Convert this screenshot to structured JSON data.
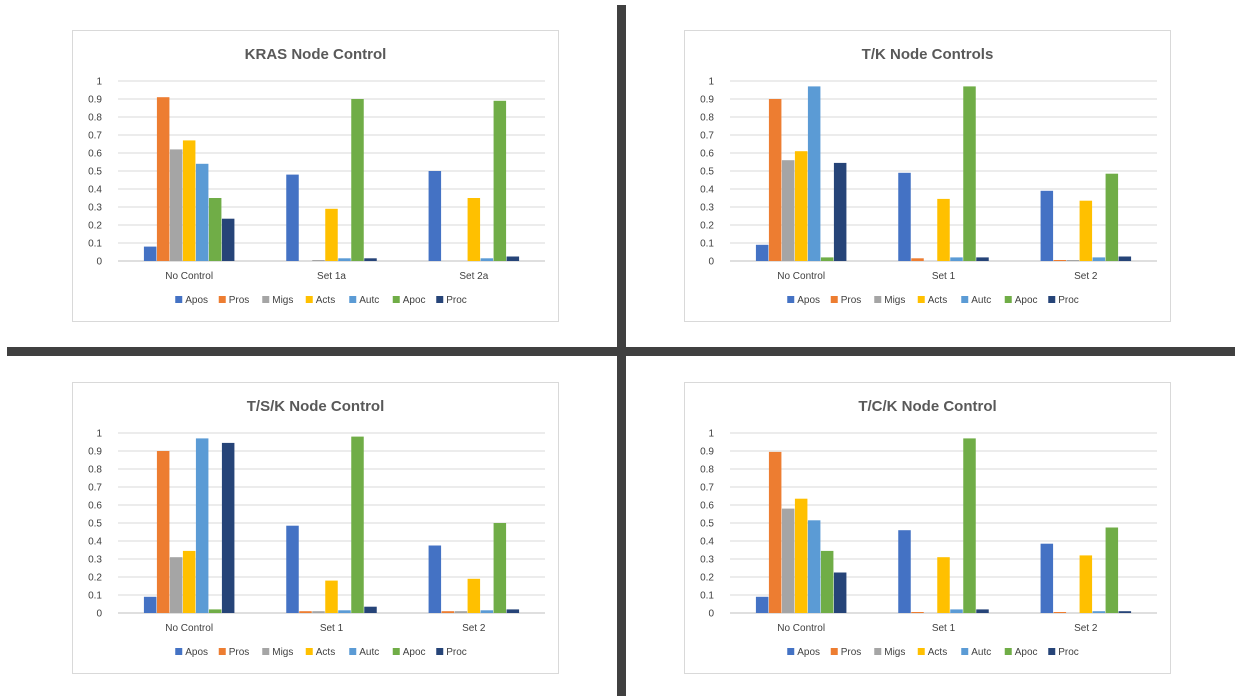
{
  "colors": {
    "Apos": "#4472c4",
    "Pros": "#ed7d31",
    "Migs": "#a5a5a5",
    "Acts": "#ffc000",
    "Autc": "#5b9bd5",
    "Apoc": "#70ad47",
    "Proc": "#264478"
  },
  "chart_data": [
    {
      "type": "bar",
      "title": "KRAS Node Control",
      "categories": [
        "No Control",
        "Set 1a",
        "Set 2a"
      ],
      "ylim": [
        0,
        1
      ],
      "yticks": [
        "0",
        "0.1",
        "0.2",
        "0.3",
        "0.4",
        "0.5",
        "0.6",
        "0.7",
        "0.8",
        "0.9",
        "1"
      ],
      "grid": true,
      "legend": "bottom",
      "series": [
        {
          "name": "Apos",
          "values": [
            0.08,
            0.48,
            0.5
          ]
        },
        {
          "name": "Pros",
          "values": [
            0.91,
            0.0,
            0.0
          ]
        },
        {
          "name": "Migs",
          "values": [
            0.62,
            0.005,
            0.0
          ]
        },
        {
          "name": "Acts",
          "values": [
            0.67,
            0.29,
            0.35
          ]
        },
        {
          "name": "Autc",
          "values": [
            0.54,
            0.015,
            0.015
          ]
        },
        {
          "name": "Apoc",
          "values": [
            0.35,
            0.9,
            0.89
          ]
        },
        {
          "name": "Proc",
          "values": [
            0.235,
            0.015,
            0.025
          ]
        }
      ]
    },
    {
      "type": "bar",
      "title": "T/K Node Controls",
      "categories": [
        "No Control",
        "Set 1",
        "Set 2"
      ],
      "ylim": [
        0,
        1
      ],
      "yticks": [
        "0",
        "0.1",
        "0.2",
        "0.3",
        "0.4",
        "0.5",
        "0.6",
        "0.7",
        "0.8",
        "0.9",
        "1"
      ],
      "grid": true,
      "legend": "bottom",
      "series": [
        {
          "name": "Apos",
          "values": [
            0.09,
            0.49,
            0.39
          ]
        },
        {
          "name": "Pros",
          "values": [
            0.9,
            0.015,
            0.005
          ]
        },
        {
          "name": "Migs",
          "values": [
            0.56,
            0.0,
            0.005
          ]
        },
        {
          "name": "Acts",
          "values": [
            0.61,
            0.345,
            0.335
          ]
        },
        {
          "name": "Autc",
          "values": [
            0.97,
            0.02,
            0.02
          ]
        },
        {
          "name": "Apoc",
          "values": [
            0.02,
            0.97,
            0.485
          ]
        },
        {
          "name": "Proc",
          "values": [
            0.545,
            0.02,
            0.025
          ]
        }
      ]
    },
    {
      "type": "bar",
      "title": "T/S/K Node Control",
      "categories": [
        "No Control",
        "Set 1",
        "Set 2"
      ],
      "ylim": [
        0,
        1
      ],
      "yticks": [
        "0",
        "0.1",
        "0.2",
        "0.3",
        "0.4",
        "0.5",
        "0.6",
        "0.7",
        "0.8",
        "0.9",
        "1"
      ],
      "grid": true,
      "legend": "bottom",
      "series": [
        {
          "name": "Apos",
          "values": [
            0.09,
            0.485,
            0.375
          ]
        },
        {
          "name": "Pros",
          "values": [
            0.9,
            0.01,
            0.01
          ]
        },
        {
          "name": "Migs",
          "values": [
            0.31,
            0.01,
            0.01
          ]
        },
        {
          "name": "Acts",
          "values": [
            0.345,
            0.18,
            0.19
          ]
        },
        {
          "name": "Autc",
          "values": [
            0.97,
            0.015,
            0.015
          ]
        },
        {
          "name": "Apoc",
          "values": [
            0.02,
            0.98,
            0.5
          ]
        },
        {
          "name": "Proc",
          "values": [
            0.945,
            0.035,
            0.02
          ]
        }
      ]
    },
    {
      "type": "bar",
      "title": "T/C/K Node Control",
      "categories": [
        "No Control",
        "Set 1",
        "Set 2"
      ],
      "ylim": [
        0,
        1
      ],
      "yticks": [
        "0",
        "0.1",
        "0.2",
        "0.3",
        "0.4",
        "0.5",
        "0.6",
        "0.7",
        "0.8",
        "0.9",
        "1"
      ],
      "grid": true,
      "legend": "bottom",
      "series": [
        {
          "name": "Apos",
          "values": [
            0.09,
            0.46,
            0.385
          ]
        },
        {
          "name": "Pros",
          "values": [
            0.895,
            0.005,
            0.005
          ]
        },
        {
          "name": "Migs",
          "values": [
            0.58,
            0.0,
            0.0
          ]
        },
        {
          "name": "Acts",
          "values": [
            0.635,
            0.31,
            0.32
          ]
        },
        {
          "name": "Autc",
          "values": [
            0.515,
            0.02,
            0.01
          ]
        },
        {
          "name": "Apoc",
          "values": [
            0.345,
            0.97,
            0.475
          ]
        },
        {
          "name": "Proc",
          "values": [
            0.225,
            0.02,
            0.01
          ]
        }
      ]
    }
  ]
}
